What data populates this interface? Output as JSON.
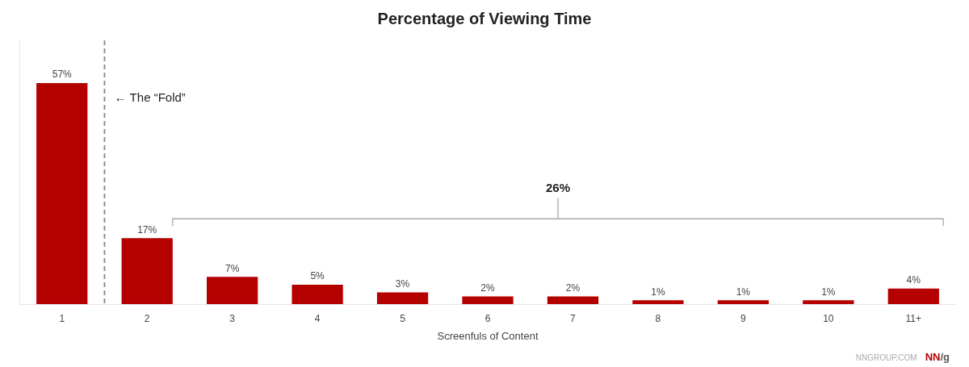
{
  "chart_data": {
    "type": "bar",
    "title": "Percentage of Viewing Time",
    "xlabel": "Screenfuls of Content",
    "categories": [
      "1",
      "2",
      "3",
      "4",
      "5",
      "6",
      "7",
      "8",
      "9",
      "10",
      "11+"
    ],
    "values": [
      57,
      17,
      7,
      5,
      3,
      2,
      2,
      1,
      1,
      1,
      4
    ],
    "value_labels": [
      "57%",
      "17%",
      "7%",
      "5%",
      "3%",
      "2%",
      "2%",
      "1%",
      "1%",
      "1%",
      "4%"
    ],
    "color": "#B50000",
    "ylim": [
      0,
      68
    ],
    "grid": false,
    "tick_labels": "x",
    "data_labels": true,
    "annotations": [
      "← The “Fold”",
      "26%",
      "NNGROUP.COM",
      "NN",
      "/g"
    ]
  }
}
